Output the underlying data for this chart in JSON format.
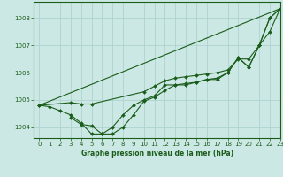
{
  "background_color": "#cce8e4",
  "plot_bg_color": "#cce8e4",
  "line_color": "#1a5c1a",
  "marker_color": "#1a5c1a",
  "grid_color": "#a8d0cc",
  "xlabel": "Graphe pression niveau de la mer (hPa)",
  "xlim": [
    -0.5,
    23
  ],
  "ylim": [
    1003.6,
    1008.6
  ],
  "yticks": [
    1004,
    1005,
    1006,
    1007,
    1008
  ],
  "xticks": [
    0,
    1,
    2,
    3,
    4,
    5,
    6,
    7,
    8,
    9,
    10,
    11,
    12,
    13,
    14,
    15,
    16,
    17,
    18,
    19,
    20,
    21,
    22,
    23
  ],
  "series": [
    {
      "x": [
        0,
        1,
        2,
        3,
        4,
        5,
        6,
        7,
        8,
        9,
        10,
        11,
        12,
        13,
        14,
        15,
        16,
        17,
        18,
        19,
        20,
        21,
        22,
        23
      ],
      "y": [
        1004.8,
        1004.75,
        1004.6,
        1004.45,
        1004.15,
        1003.75,
        1003.75,
        1004.0,
        1004.45,
        1004.8,
        1005.0,
        1005.15,
        1005.55,
        1005.55,
        1005.6,
        1005.65,
        1005.75,
        1005.8,
        1006.0,
        1006.55,
        1006.2,
        1007.0,
        1008.0,
        1008.35
      ],
      "no_marker": false
    },
    {
      "x": [
        0,
        3,
        4,
        5,
        10,
        11,
        12,
        13,
        14,
        15,
        16,
        17,
        18,
        19,
        20,
        21,
        22,
        23
      ],
      "y": [
        1004.8,
        1004.9,
        1004.85,
        1004.85,
        1005.3,
        1005.5,
        1005.7,
        1005.8,
        1005.85,
        1005.9,
        1005.95,
        1006.0,
        1006.1,
        1006.5,
        1006.5,
        1007.0,
        1007.5,
        1008.35
      ],
      "no_marker": false
    },
    {
      "x": [
        3,
        4,
        5,
        6,
        7,
        8,
        9,
        10,
        11,
        12,
        13,
        14,
        15,
        16,
        17,
        18,
        19,
        20,
        21,
        22,
        23
      ],
      "y": [
        1004.35,
        1004.1,
        1004.05,
        1003.75,
        1003.75,
        1004.0,
        1004.45,
        1004.95,
        1005.1,
        1005.35,
        1005.55,
        1005.55,
        1005.65,
        1005.75,
        1005.75,
        1006.0,
        1006.55,
        1006.2,
        1007.0,
        1008.0,
        1008.35
      ],
      "no_marker": false
    },
    {
      "x": [
        0,
        23
      ],
      "y": [
        1004.8,
        1008.35
      ],
      "no_marker": true
    }
  ]
}
